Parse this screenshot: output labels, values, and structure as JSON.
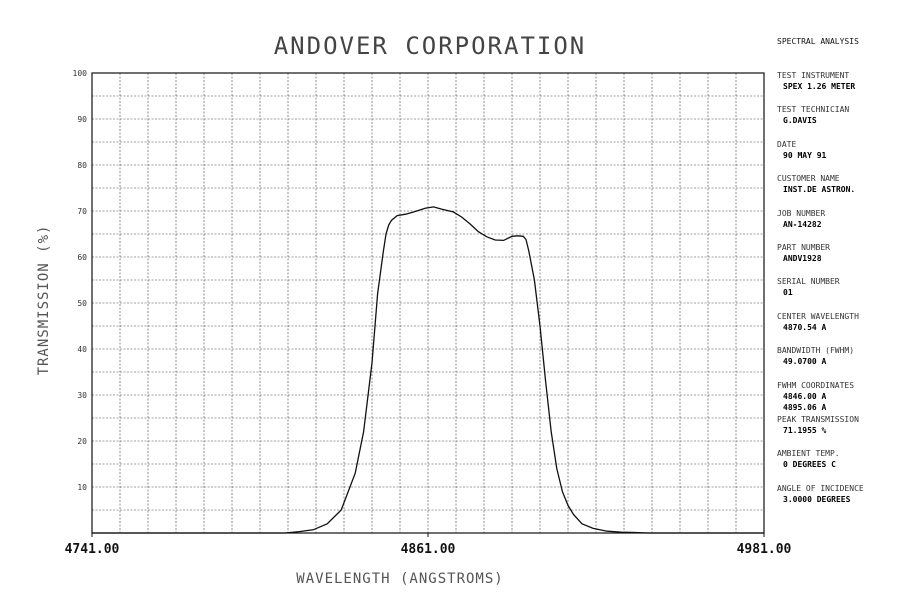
{
  "header": {
    "title": "ANDOVER CORPORATION",
    "corner_label": "SPECTRAL ANALYSIS"
  },
  "info_panel": [
    {
      "label": "TEST INSTRUMENT",
      "value": "SPEX 1.26 METER"
    },
    {
      "label": "TEST TECHNICIAN",
      "value": "G.DAVIS"
    },
    {
      "label": "DATE",
      "value": "90 MAY 91"
    },
    {
      "label": "CUSTOMER NAME",
      "value": "INST.DE ASTRON."
    },
    {
      "label": "JOB NUMBER",
      "value": "AN-14282"
    },
    {
      "label": "PART NUMBER",
      "value": "ANDV1928"
    },
    {
      "label": "SERIAL NUMBER",
      "value": "01"
    },
    {
      "label": "CENTER WAVELENGTH",
      "value": "4870.54 A"
    },
    {
      "label": "BANDWIDTH (FWHM)",
      "value": "49.0700 A"
    },
    {
      "label": "FWHM COORDINATES",
      "value": "4846.00 A",
      "value2": "4895.06 A"
    },
    {
      "label": "PEAK TRANSMISSION",
      "value": "71.1955 %"
    },
    {
      "label": "AMBIENT TEMP.",
      "value": "0 DEGREES C"
    },
    {
      "label": "ANGLE OF INCIDENCE",
      "value": "3.0000 DEGREES"
    }
  ],
  "chart_data": {
    "type": "line",
    "title": "ANDOVER CORPORATION",
    "xlabel": "WAVELENGTH (ANGSTROMS)",
    "ylabel": "TRANSMISSION (%)",
    "xlim": [
      4741.0,
      4981.0
    ],
    "ylim": [
      0,
      100
    ],
    "x_tick_labels": [
      "4741.00",
      "4861.00",
      "4981.00"
    ],
    "x_ticks": [
      4741.0,
      4861.0,
      4981.0
    ],
    "y_tick_labels": [
      "10",
      "20",
      "30",
      "40",
      "50",
      "60",
      "70",
      "80",
      "90",
      "100"
    ],
    "y_ticks": [
      10,
      20,
      30,
      40,
      50,
      60,
      70,
      80,
      90,
      100
    ],
    "grid": true,
    "series": [
      {
        "x": [
          4741,
          4760,
          4780,
          4800,
          4810,
          4815,
          4820,
          4825,
          4830,
          4835,
          4838,
          4841,
          4843,
          4845,
          4846,
          4847,
          4848,
          4850,
          4853,
          4856,
          4860,
          4863,
          4866,
          4870,
          4873,
          4876,
          4879,
          4882,
          4885,
          4888,
          4891,
          4893,
          4895,
          4896,
          4897,
          4899,
          4901,
          4903,
          4905,
          4907,
          4909,
          4911,
          4913,
          4916,
          4920,
          4925,
          4930,
          4940,
          4950,
          4981
        ],
        "y": [
          0,
          0,
          0,
          0,
          0,
          0.3,
          0.7,
          2,
          5,
          13,
          22,
          37,
          52,
          61,
          65,
          67,
          68,
          69,
          69.3,
          69.8,
          70.6,
          70.9,
          70.4,
          69.8,
          68.7,
          67.2,
          65.5,
          64.4,
          63.7,
          63.6,
          64.5,
          64.6,
          64.5,
          63.8,
          61.3,
          55,
          45,
          33,
          22,
          14,
          9,
          6,
          4,
          2,
          1,
          0.4,
          0.2,
          0,
          0,
          0
        ]
      }
    ]
  }
}
